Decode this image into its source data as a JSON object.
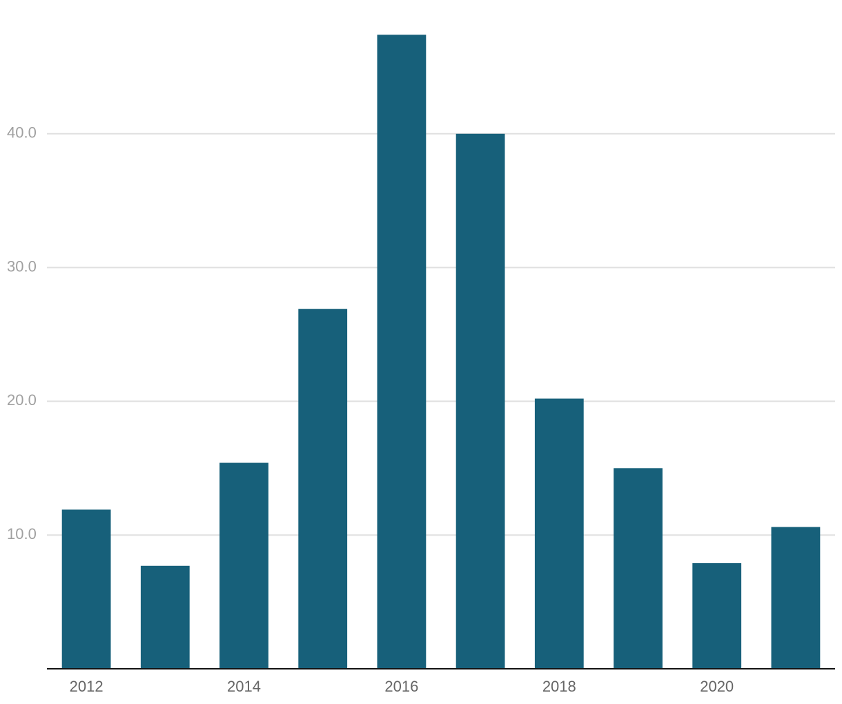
{
  "chart_data": {
    "type": "bar",
    "x": [
      2012,
      2013,
      2014,
      2015,
      2016,
      2017,
      2018,
      2019,
      2020,
      2021
    ],
    "values": [
      11.9,
      7.7,
      15.4,
      26.9,
      47.4,
      40.0,
      20.2,
      15.0,
      7.9,
      10.6
    ],
    "color": "#17607a",
    "xlim": [
      2011.5,
      2021.5
    ],
    "xticks": [
      2012,
      2014,
      2016,
      2018,
      2020
    ],
    "ylim": [
      0,
      50
    ],
    "yticks": [
      {
        "value": 10,
        "label": "10.0"
      },
      {
        "value": 20,
        "label": "20.0"
      },
      {
        "value": 30,
        "label": "30.0"
      },
      {
        "value": 40,
        "label": "40.0"
      }
    ],
    "grid": true
  }
}
